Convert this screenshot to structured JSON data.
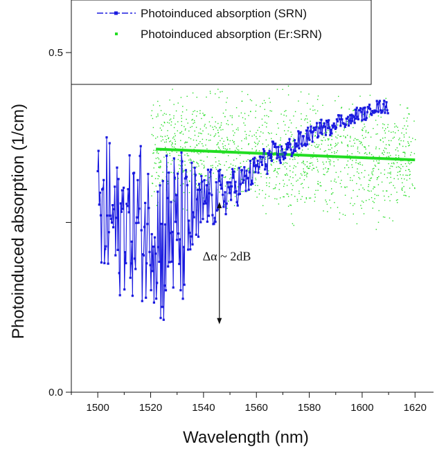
{
  "chart_data": {
    "type": "scatter",
    "title": "",
    "xlabel": "Wavelength (nm)",
    "ylabel": "Photoinduced absorption (1/cm)",
    "xlim": [
      1490,
      1627
    ],
    "ylim": [
      0.0,
      0.5
    ],
    "x_ticks": [
      1500,
      1520,
      1540,
      1560,
      1580,
      1600,
      1620
    ],
    "x_tick_labels": [
      "1500",
      "1520",
      "1540",
      "1560",
      "1580",
      "1600",
      "1620"
    ],
    "y_ticks": [
      0.0,
      0.25,
      0.5
    ],
    "y_tick_labels": [
      "0.0",
      "",
      "0.5"
    ],
    "grid": false,
    "legend_position": "top-left",
    "colors": {
      "srn": "#1a1adf",
      "er_srn": "#22dd22"
    },
    "series": [
      {
        "name": "Photoinduced absorption (SRN)",
        "kind": "line-with-markers",
        "color": "#1a1adf",
        "x": [
          1500,
          1502,
          1504,
          1506,
          1508,
          1510,
          1512,
          1514,
          1516,
          1518,
          1520,
          1522,
          1524,
          1526,
          1528,
          1530,
          1532,
          1534,
          1536,
          1538,
          1540,
          1542,
          1544,
          1546,
          1548,
          1550,
          1552,
          1554,
          1556,
          1558,
          1560,
          1562,
          1564,
          1566,
          1568,
          1570,
          1572,
          1574,
          1576,
          1578,
          1580,
          1582,
          1584,
          1586,
          1588,
          1590,
          1592,
          1594,
          1596,
          1598,
          1600,
          1602,
          1604,
          1606,
          1608,
          1610
        ],
        "y": [
          0.26,
          0.24,
          0.27,
          0.25,
          0.23,
          0.26,
          0.25,
          0.24,
          0.26,
          0.23,
          0.25,
          0.24,
          0.22,
          0.23,
          0.25,
          0.22,
          0.24,
          0.23,
          0.27,
          0.25,
          0.28,
          0.29,
          0.28,
          0.29,
          0.29,
          0.3,
          0.3,
          0.31,
          0.31,
          0.32,
          0.33,
          0.34,
          0.34,
          0.35,
          0.35,
          0.35,
          0.36,
          0.36,
          0.37,
          0.37,
          0.38,
          0.38,
          0.39,
          0.39,
          0.39,
          0.4,
          0.4,
          0.4,
          0.4,
          0.41,
          0.41,
          0.41,
          0.42,
          0.42,
          0.42,
          0.42
        ],
        "spread": [
          0.1,
          0.11,
          0.12,
          0.11,
          0.1,
          0.11,
          0.1,
          0.11,
          0.12,
          0.11,
          0.1,
          0.12,
          0.13,
          0.14,
          0.12,
          0.13,
          0.12,
          0.1,
          0.08,
          0.07,
          0.05,
          0.045,
          0.04,
          0.04,
          0.035,
          0.03,
          0.03,
          0.03,
          0.025,
          0.025,
          0.02,
          0.02,
          0.02,
          0.02,
          0.015,
          0.015,
          0.015,
          0.015,
          0.015,
          0.015,
          0.012,
          0.012,
          0.012,
          0.012,
          0.012,
          0.012,
          0.01,
          0.01,
          0.01,
          0.01,
          0.01,
          0.01,
          0.01,
          0.01,
          0.01,
          0.01
        ]
      },
      {
        "name": "Photoinduced absorption (Er:SRN)",
        "kind": "scatter",
        "color": "#22dd22",
        "x_range": [
          1520,
          1620
        ],
        "trend": {
          "x": [
            1522,
            1620
          ],
          "y": [
            0.358,
            0.342
          ]
        },
        "spread": 0.12
      }
    ],
    "annotations": [
      {
        "text": "Δα ~ 2dB",
        "x": 1547,
        "y": 0.2
      },
      {
        "type": "double-arrow",
        "x": 1546,
        "y_top": 0.28,
        "y_bottom": 0.1
      }
    ]
  }
}
